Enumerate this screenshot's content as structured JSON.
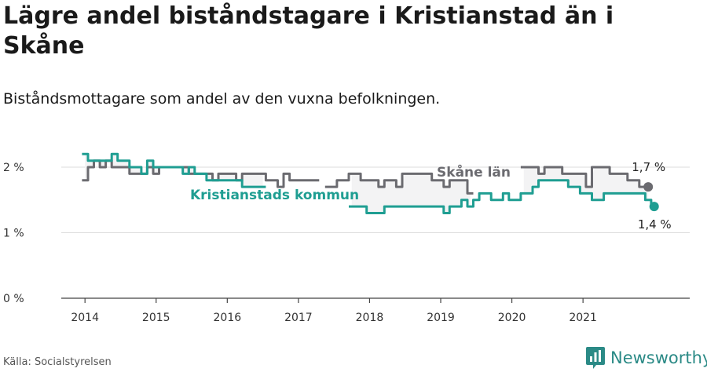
{
  "title": "Lägre andel biståndstagare i Kristianstad än i Skåne",
  "subtitle": "Biståndsmottagare som andel av den vuxna befolkningen.",
  "source": "Källa: Socialstyrelsen",
  "brand": "Newsworthy",
  "colors": {
    "skane": "#6b6b70",
    "kristianstad": "#1f9e92",
    "fill": "#f3f3f4",
    "axis": "#444444",
    "grid": "#dddddd",
    "brand": "#2b8a86"
  },
  "chart_data": {
    "type": "line",
    "x_start": "2014-01",
    "x_ticks": [
      "2014",
      "2015",
      "2016",
      "2017",
      "2018",
      "2019",
      "2020",
      "2021"
    ],
    "y_ticks": [
      {
        "value": 0,
        "label": "0 %"
      },
      {
        "value": 1,
        "label": "1 %"
      },
      {
        "value": 2,
        "label": "2 %"
      }
    ],
    "ylim": [
      0,
      2.3
    ],
    "xlim": [
      "2013-09",
      "2022-07"
    ],
    "grid": true,
    "series": [
      {
        "name": "Skåne län",
        "key": "skane",
        "end_label": "1,7 %",
        "values": [
          1.8,
          2.0,
          2.1,
          2.0,
          2.1,
          2.0,
          2.0,
          2.0,
          1.9,
          1.9,
          1.9,
          2.0,
          1.9,
          2.0,
          2.0,
          2.0,
          2.0,
          2.0,
          1.9,
          1.9,
          1.9,
          1.9,
          1.8,
          1.9,
          1.9,
          1.9,
          1.8,
          1.9,
          1.9,
          1.9,
          1.9,
          1.8,
          1.8,
          1.7,
          1.9,
          1.8,
          1.8,
          1.8,
          1.8,
          1.8,
          null,
          1.7,
          1.7,
          1.8,
          1.8,
          1.9,
          1.9,
          1.8,
          1.8,
          1.8,
          1.7,
          1.8,
          1.8,
          1.7,
          1.9,
          1.9,
          1.9,
          1.9,
          1.9,
          1.8,
          1.8,
          1.7,
          1.8,
          1.8,
          1.8,
          1.6,
          null,
          null,
          null,
          null,
          null,
          null,
          null,
          null,
          2.0,
          2.0,
          2.0,
          1.9,
          2.0,
          2.0,
          2.0,
          1.9,
          1.9,
          1.9,
          1.9,
          1.7,
          2.0,
          2.0,
          2.0,
          1.9,
          1.9,
          1.9,
          1.8,
          1.8,
          1.7,
          1.7
        ]
      },
      {
        "name": "Kristianstads kommun",
        "key": "kristianstad",
        "end_label": "1,4 %",
        "values": [
          2.2,
          2.1,
          2.1,
          2.1,
          2.1,
          2.2,
          2.1,
          2.1,
          2.0,
          2.0,
          1.9,
          2.1,
          2.0,
          2.0,
          2.0,
          2.0,
          2.0,
          1.9,
          2.0,
          1.9,
          1.9,
          1.8,
          1.8,
          1.8,
          1.8,
          1.8,
          1.8,
          1.7,
          1.7,
          1.7,
          1.7,
          null,
          null,
          null,
          null,
          null,
          null,
          null,
          null,
          null,
          null,
          null,
          null,
          null,
          null,
          1.4,
          1.4,
          1.4,
          1.3,
          1.3,
          1.3,
          1.4,
          1.4,
          1.4,
          1.4,
          1.4,
          1.4,
          1.4,
          1.4,
          1.4,
          1.4,
          1.3,
          1.4,
          1.4,
          1.5,
          1.4,
          1.5,
          1.6,
          1.6,
          1.5,
          1.5,
          1.6,
          1.5,
          1.5,
          1.6,
          1.6,
          1.7,
          1.8,
          1.8,
          1.8,
          1.8,
          1.8,
          1.7,
          1.7,
          1.6,
          1.6,
          1.5,
          1.5,
          1.6,
          1.6,
          1.6,
          1.6,
          1.6,
          1.6,
          1.6,
          1.5,
          1.4
        ]
      }
    ]
  }
}
